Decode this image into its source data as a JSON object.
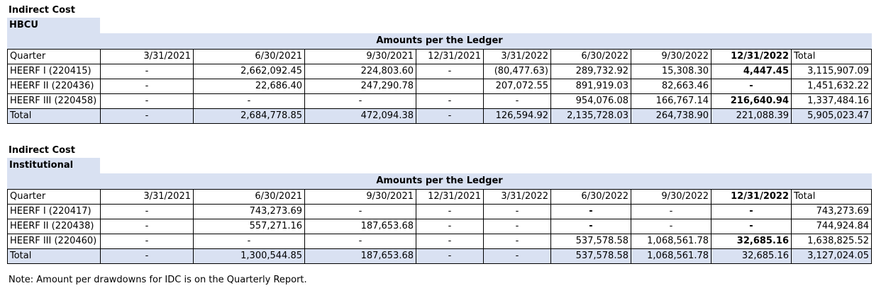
{
  "section1": {
    "title": "Indirect Cost",
    "subtitle": "HBCU",
    "band": "Amounts per the Ledger",
    "headers": [
      "Quarter",
      "3/31/2021",
      "6/30/2021",
      "9/30/2021",
      "12/31/2021",
      "3/31/2022",
      "6/30/2022",
      "9/30/2022",
      "12/31/2022",
      "Total"
    ],
    "rows": [
      [
        "HEERF I (220415)",
        "-",
        "2,662,092.45",
        "224,803.60",
        "-",
        "(80,477.63)",
        "289,732.92",
        "15,308.30",
        "4,447.45",
        "3,115,907.09"
      ],
      [
        "HEERF II (220436)",
        "-",
        "22,686.40",
        "247,290.78",
        "",
        "207,072.55",
        "891,919.03",
        "82,663.46",
        "-",
        "1,451,632.22"
      ],
      [
        "HEERF III (220458)",
        "-",
        "-",
        "-",
        "-",
        "-",
        "954,076.08",
        "166,767.14",
        "216,640.94",
        "1,337,484.16"
      ]
    ],
    "total": [
      "Total",
      "-",
      "2,684,778.85",
      "472,094.38",
      "-",
      "126,594.92",
      "2,135,728.03",
      "264,738.90",
      "221,088.39",
      "5,905,023.47"
    ]
  },
  "section2": {
    "title": "Indirect Cost",
    "subtitle": "Institutional",
    "band": "Amounts per the Ledger",
    "headers": [
      "Quarter",
      "3/31/2021",
      "6/30/2021",
      "9/30/2021",
      "12/31/2021",
      "3/31/2022",
      "6/30/2022",
      "9/30/2022",
      "12/31/2022",
      "Total"
    ],
    "rows": [
      [
        "HEERF I (220417)",
        "-",
        "743,273.69",
        "-",
        "-",
        "-",
        "-",
        "-",
        "-",
        "743,273.69"
      ],
      [
        "HEERF II (220438)",
        "-",
        "557,271.16",
        "187,653.68",
        "-",
        "-",
        "-",
        "-",
        "-",
        "744,924.84"
      ],
      [
        "HEERF III (220460)",
        "-",
        "-",
        "-",
        "-",
        "-",
        "537,578.58",
        "1,068,561.78",
        "32,685.16",
        "1,638,825.52"
      ]
    ],
    "total": [
      "Total",
      "-",
      "1,300,544.85",
      "187,653.68",
      "-",
      "-",
      "537,578.58",
      "1,068,561.78",
      "32,685.16",
      "3,127,024.05"
    ]
  },
  "note": "Note:  Amount per drawdowns for IDC is on the Quarterly Report."
}
